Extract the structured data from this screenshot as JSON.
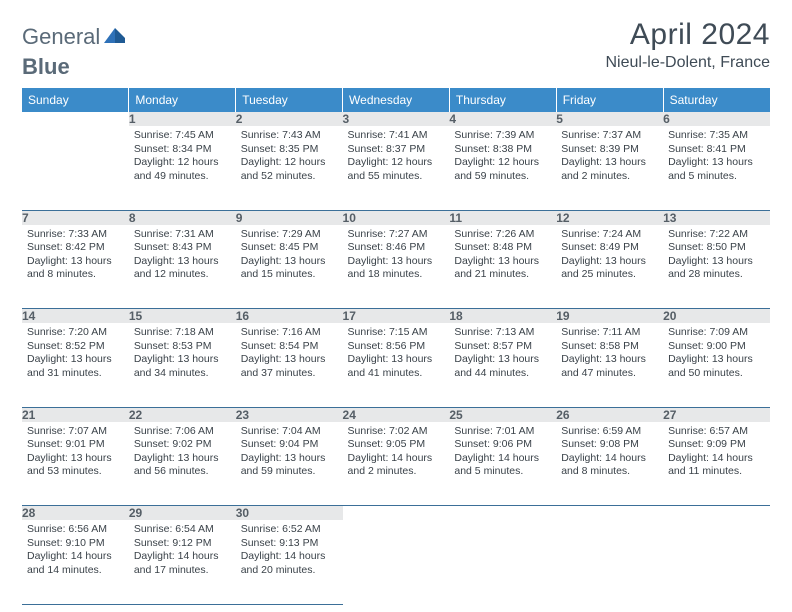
{
  "brand": {
    "part1": "General",
    "part2": "Blue"
  },
  "title": "April 2024",
  "location": "Nieul-le-Dolent, France",
  "colors": {
    "header_bg": "#3b8bc9",
    "header_text": "#ffffff",
    "daynum_bg": "#e7e8e9",
    "daynum_text": "#555e66",
    "cell_text": "#3a4249",
    "rule": "#3b6f98",
    "logo_text": "#5a6a78",
    "logo_accent": "#2e71b8"
  },
  "weekdays": [
    "Sunday",
    "Monday",
    "Tuesday",
    "Wednesday",
    "Thursday",
    "Friday",
    "Saturday"
  ],
  "weeks": [
    [
      null,
      {
        "n": "1",
        "sunrise": "Sunrise: 7:45 AM",
        "sunset": "Sunset: 8:34 PM",
        "day1": "Daylight: 12 hours",
        "day2": "and 49 minutes."
      },
      {
        "n": "2",
        "sunrise": "Sunrise: 7:43 AM",
        "sunset": "Sunset: 8:35 PM",
        "day1": "Daylight: 12 hours",
        "day2": "and 52 minutes."
      },
      {
        "n": "3",
        "sunrise": "Sunrise: 7:41 AM",
        "sunset": "Sunset: 8:37 PM",
        "day1": "Daylight: 12 hours",
        "day2": "and 55 minutes."
      },
      {
        "n": "4",
        "sunrise": "Sunrise: 7:39 AM",
        "sunset": "Sunset: 8:38 PM",
        "day1": "Daylight: 12 hours",
        "day2": "and 59 minutes."
      },
      {
        "n": "5",
        "sunrise": "Sunrise: 7:37 AM",
        "sunset": "Sunset: 8:39 PM",
        "day1": "Daylight: 13 hours",
        "day2": "and 2 minutes."
      },
      {
        "n": "6",
        "sunrise": "Sunrise: 7:35 AM",
        "sunset": "Sunset: 8:41 PM",
        "day1": "Daylight: 13 hours",
        "day2": "and 5 minutes."
      }
    ],
    [
      {
        "n": "7",
        "sunrise": "Sunrise: 7:33 AM",
        "sunset": "Sunset: 8:42 PM",
        "day1": "Daylight: 13 hours",
        "day2": "and 8 minutes."
      },
      {
        "n": "8",
        "sunrise": "Sunrise: 7:31 AM",
        "sunset": "Sunset: 8:43 PM",
        "day1": "Daylight: 13 hours",
        "day2": "and 12 minutes."
      },
      {
        "n": "9",
        "sunrise": "Sunrise: 7:29 AM",
        "sunset": "Sunset: 8:45 PM",
        "day1": "Daylight: 13 hours",
        "day2": "and 15 minutes."
      },
      {
        "n": "10",
        "sunrise": "Sunrise: 7:27 AM",
        "sunset": "Sunset: 8:46 PM",
        "day1": "Daylight: 13 hours",
        "day2": "and 18 minutes."
      },
      {
        "n": "11",
        "sunrise": "Sunrise: 7:26 AM",
        "sunset": "Sunset: 8:48 PM",
        "day1": "Daylight: 13 hours",
        "day2": "and 21 minutes."
      },
      {
        "n": "12",
        "sunrise": "Sunrise: 7:24 AM",
        "sunset": "Sunset: 8:49 PM",
        "day1": "Daylight: 13 hours",
        "day2": "and 25 minutes."
      },
      {
        "n": "13",
        "sunrise": "Sunrise: 7:22 AM",
        "sunset": "Sunset: 8:50 PM",
        "day1": "Daylight: 13 hours",
        "day2": "and 28 minutes."
      }
    ],
    [
      {
        "n": "14",
        "sunrise": "Sunrise: 7:20 AM",
        "sunset": "Sunset: 8:52 PM",
        "day1": "Daylight: 13 hours",
        "day2": "and 31 minutes."
      },
      {
        "n": "15",
        "sunrise": "Sunrise: 7:18 AM",
        "sunset": "Sunset: 8:53 PM",
        "day1": "Daylight: 13 hours",
        "day2": "and 34 minutes."
      },
      {
        "n": "16",
        "sunrise": "Sunrise: 7:16 AM",
        "sunset": "Sunset: 8:54 PM",
        "day1": "Daylight: 13 hours",
        "day2": "and 37 minutes."
      },
      {
        "n": "17",
        "sunrise": "Sunrise: 7:15 AM",
        "sunset": "Sunset: 8:56 PM",
        "day1": "Daylight: 13 hours",
        "day2": "and 41 minutes."
      },
      {
        "n": "18",
        "sunrise": "Sunrise: 7:13 AM",
        "sunset": "Sunset: 8:57 PM",
        "day1": "Daylight: 13 hours",
        "day2": "and 44 minutes."
      },
      {
        "n": "19",
        "sunrise": "Sunrise: 7:11 AM",
        "sunset": "Sunset: 8:58 PM",
        "day1": "Daylight: 13 hours",
        "day2": "and 47 minutes."
      },
      {
        "n": "20",
        "sunrise": "Sunrise: 7:09 AM",
        "sunset": "Sunset: 9:00 PM",
        "day1": "Daylight: 13 hours",
        "day2": "and 50 minutes."
      }
    ],
    [
      {
        "n": "21",
        "sunrise": "Sunrise: 7:07 AM",
        "sunset": "Sunset: 9:01 PM",
        "day1": "Daylight: 13 hours",
        "day2": "and 53 minutes."
      },
      {
        "n": "22",
        "sunrise": "Sunrise: 7:06 AM",
        "sunset": "Sunset: 9:02 PM",
        "day1": "Daylight: 13 hours",
        "day2": "and 56 minutes."
      },
      {
        "n": "23",
        "sunrise": "Sunrise: 7:04 AM",
        "sunset": "Sunset: 9:04 PM",
        "day1": "Daylight: 13 hours",
        "day2": "and 59 minutes."
      },
      {
        "n": "24",
        "sunrise": "Sunrise: 7:02 AM",
        "sunset": "Sunset: 9:05 PM",
        "day1": "Daylight: 14 hours",
        "day2": "and 2 minutes."
      },
      {
        "n": "25",
        "sunrise": "Sunrise: 7:01 AM",
        "sunset": "Sunset: 9:06 PM",
        "day1": "Daylight: 14 hours",
        "day2": "and 5 minutes."
      },
      {
        "n": "26",
        "sunrise": "Sunrise: 6:59 AM",
        "sunset": "Sunset: 9:08 PM",
        "day1": "Daylight: 14 hours",
        "day2": "and 8 minutes."
      },
      {
        "n": "27",
        "sunrise": "Sunrise: 6:57 AM",
        "sunset": "Sunset: 9:09 PM",
        "day1": "Daylight: 14 hours",
        "day2": "and 11 minutes."
      }
    ],
    [
      {
        "n": "28",
        "sunrise": "Sunrise: 6:56 AM",
        "sunset": "Sunset: 9:10 PM",
        "day1": "Daylight: 14 hours",
        "day2": "and 14 minutes."
      },
      {
        "n": "29",
        "sunrise": "Sunrise: 6:54 AM",
        "sunset": "Sunset: 9:12 PM",
        "day1": "Daylight: 14 hours",
        "day2": "and 17 minutes."
      },
      {
        "n": "30",
        "sunrise": "Sunrise: 6:52 AM",
        "sunset": "Sunset: 9:13 PM",
        "day1": "Daylight: 14 hours",
        "day2": "and 20 minutes."
      },
      null,
      null,
      null,
      null
    ]
  ]
}
